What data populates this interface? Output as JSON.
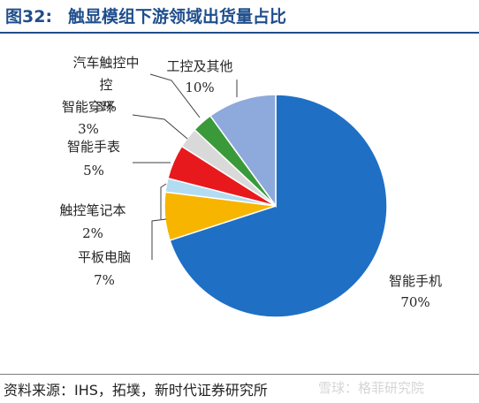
{
  "figure": {
    "number": "图32:",
    "title": "触显模组下游领域出货量占比",
    "source": "资料来源：IHS，拓墣，新时代证券研究所",
    "watermark": "雪球：格菲研究院"
  },
  "chart_data": {
    "type": "pie",
    "title": "触显模组下游领域出货量占比",
    "slices": [
      {
        "label": "智能手机",
        "value_label": "70%",
        "value": 70,
        "color": "#1f6fc5"
      },
      {
        "label": "平板电脑",
        "value_label": "7%",
        "value": 7,
        "color": "#f7b500"
      },
      {
        "label": "触控笔记本",
        "value_label": "2%",
        "value": 2,
        "color": "#b3dcf2"
      },
      {
        "label": "智能手表",
        "value_label": "5%",
        "value": 5,
        "color": "#e8191c"
      },
      {
        "label": "智能穿环",
        "value_label": "3%",
        "value": 3,
        "color": "#d9d9d9"
      },
      {
        "label": "汽车触控中控",
        "value_label": "3%",
        "value": 3,
        "color": "#3a9a3a"
      },
      {
        "label": "工控及其他",
        "value_label": "10%",
        "value": 10,
        "color": "#8ea9db"
      }
    ],
    "legend": "none"
  }
}
